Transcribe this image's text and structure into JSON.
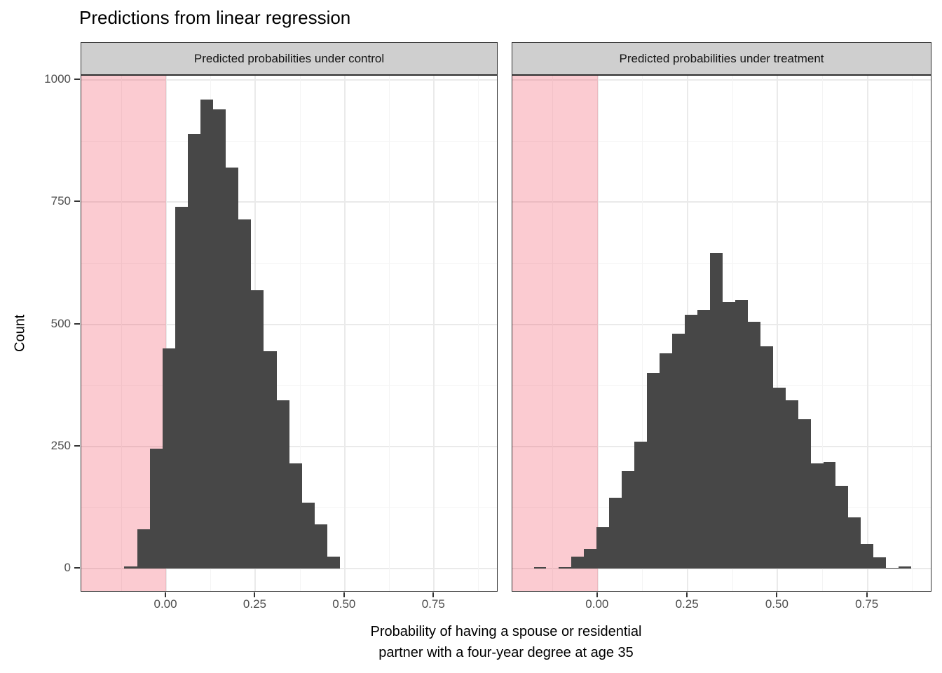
{
  "title": "Predictions from linear regression",
  "chart_data": {
    "type": "histogram",
    "title": "Predictions from linear regression",
    "xlabel": "Probability of having a spouse or residential partner with a four-year degree at age 35",
    "xlabel_lines": [
      "Probability of having a spouse or residential",
      "partner with a four-year degree at age 35"
    ],
    "ylabel": "Count",
    "legend": "none",
    "grid": true,
    "xlim": [
      -0.2375,
      0.93
    ],
    "ylim": [
      -50,
      1021
    ],
    "x_ticks": [
      "0.00",
      "0.25",
      "0.50",
      "0.75"
    ],
    "x_tick_values": [
      0,
      0.25,
      0.5,
      0.75
    ],
    "x_minor_ticks": [
      -0.125,
      0.125,
      0.375,
      0.625,
      0.875
    ],
    "y_ticks": [
      "0",
      "250",
      "500",
      "750",
      "1000"
    ],
    "y_tick_values": [
      0,
      250,
      500,
      750,
      1000
    ],
    "y_minor_ticks": [
      125,
      375,
      625,
      875
    ],
    "shaded_band": {
      "x_from": -0.2375,
      "x_to": 0
    },
    "facets": [
      {
        "label": "Predicted probabilities under control",
        "bin_start": -0.117,
        "bin_width": 0.0355,
        "counts": [
          5,
          80,
          245,
          450,
          740,
          890,
          960,
          940,
          820,
          715,
          570,
          445,
          345,
          215,
          135,
          90,
          25
        ]
      },
      {
        "label": "Predicted probabilities under treatment",
        "bin_start": -0.178,
        "bin_width": 0.035,
        "counts": [
          3,
          0,
          3,
          25,
          40,
          85,
          145,
          200,
          260,
          400,
          440,
          480,
          520,
          530,
          645,
          545,
          550,
          505,
          455,
          370,
          345,
          305,
          215,
          218,
          170,
          105,
          50,
          23,
          2,
          4
        ]
      }
    ]
  },
  "colors": {
    "bar": "#474747",
    "shaded_band": "rgba(238,38,63,0.24)",
    "strip_background": "#CFCFCF",
    "panel_border": "#2E2E2E",
    "grid_major": "#EAEAEA",
    "grid_minor": "#F4F4F4",
    "axis_text": "#4D4D4D",
    "text": "#000000"
  }
}
